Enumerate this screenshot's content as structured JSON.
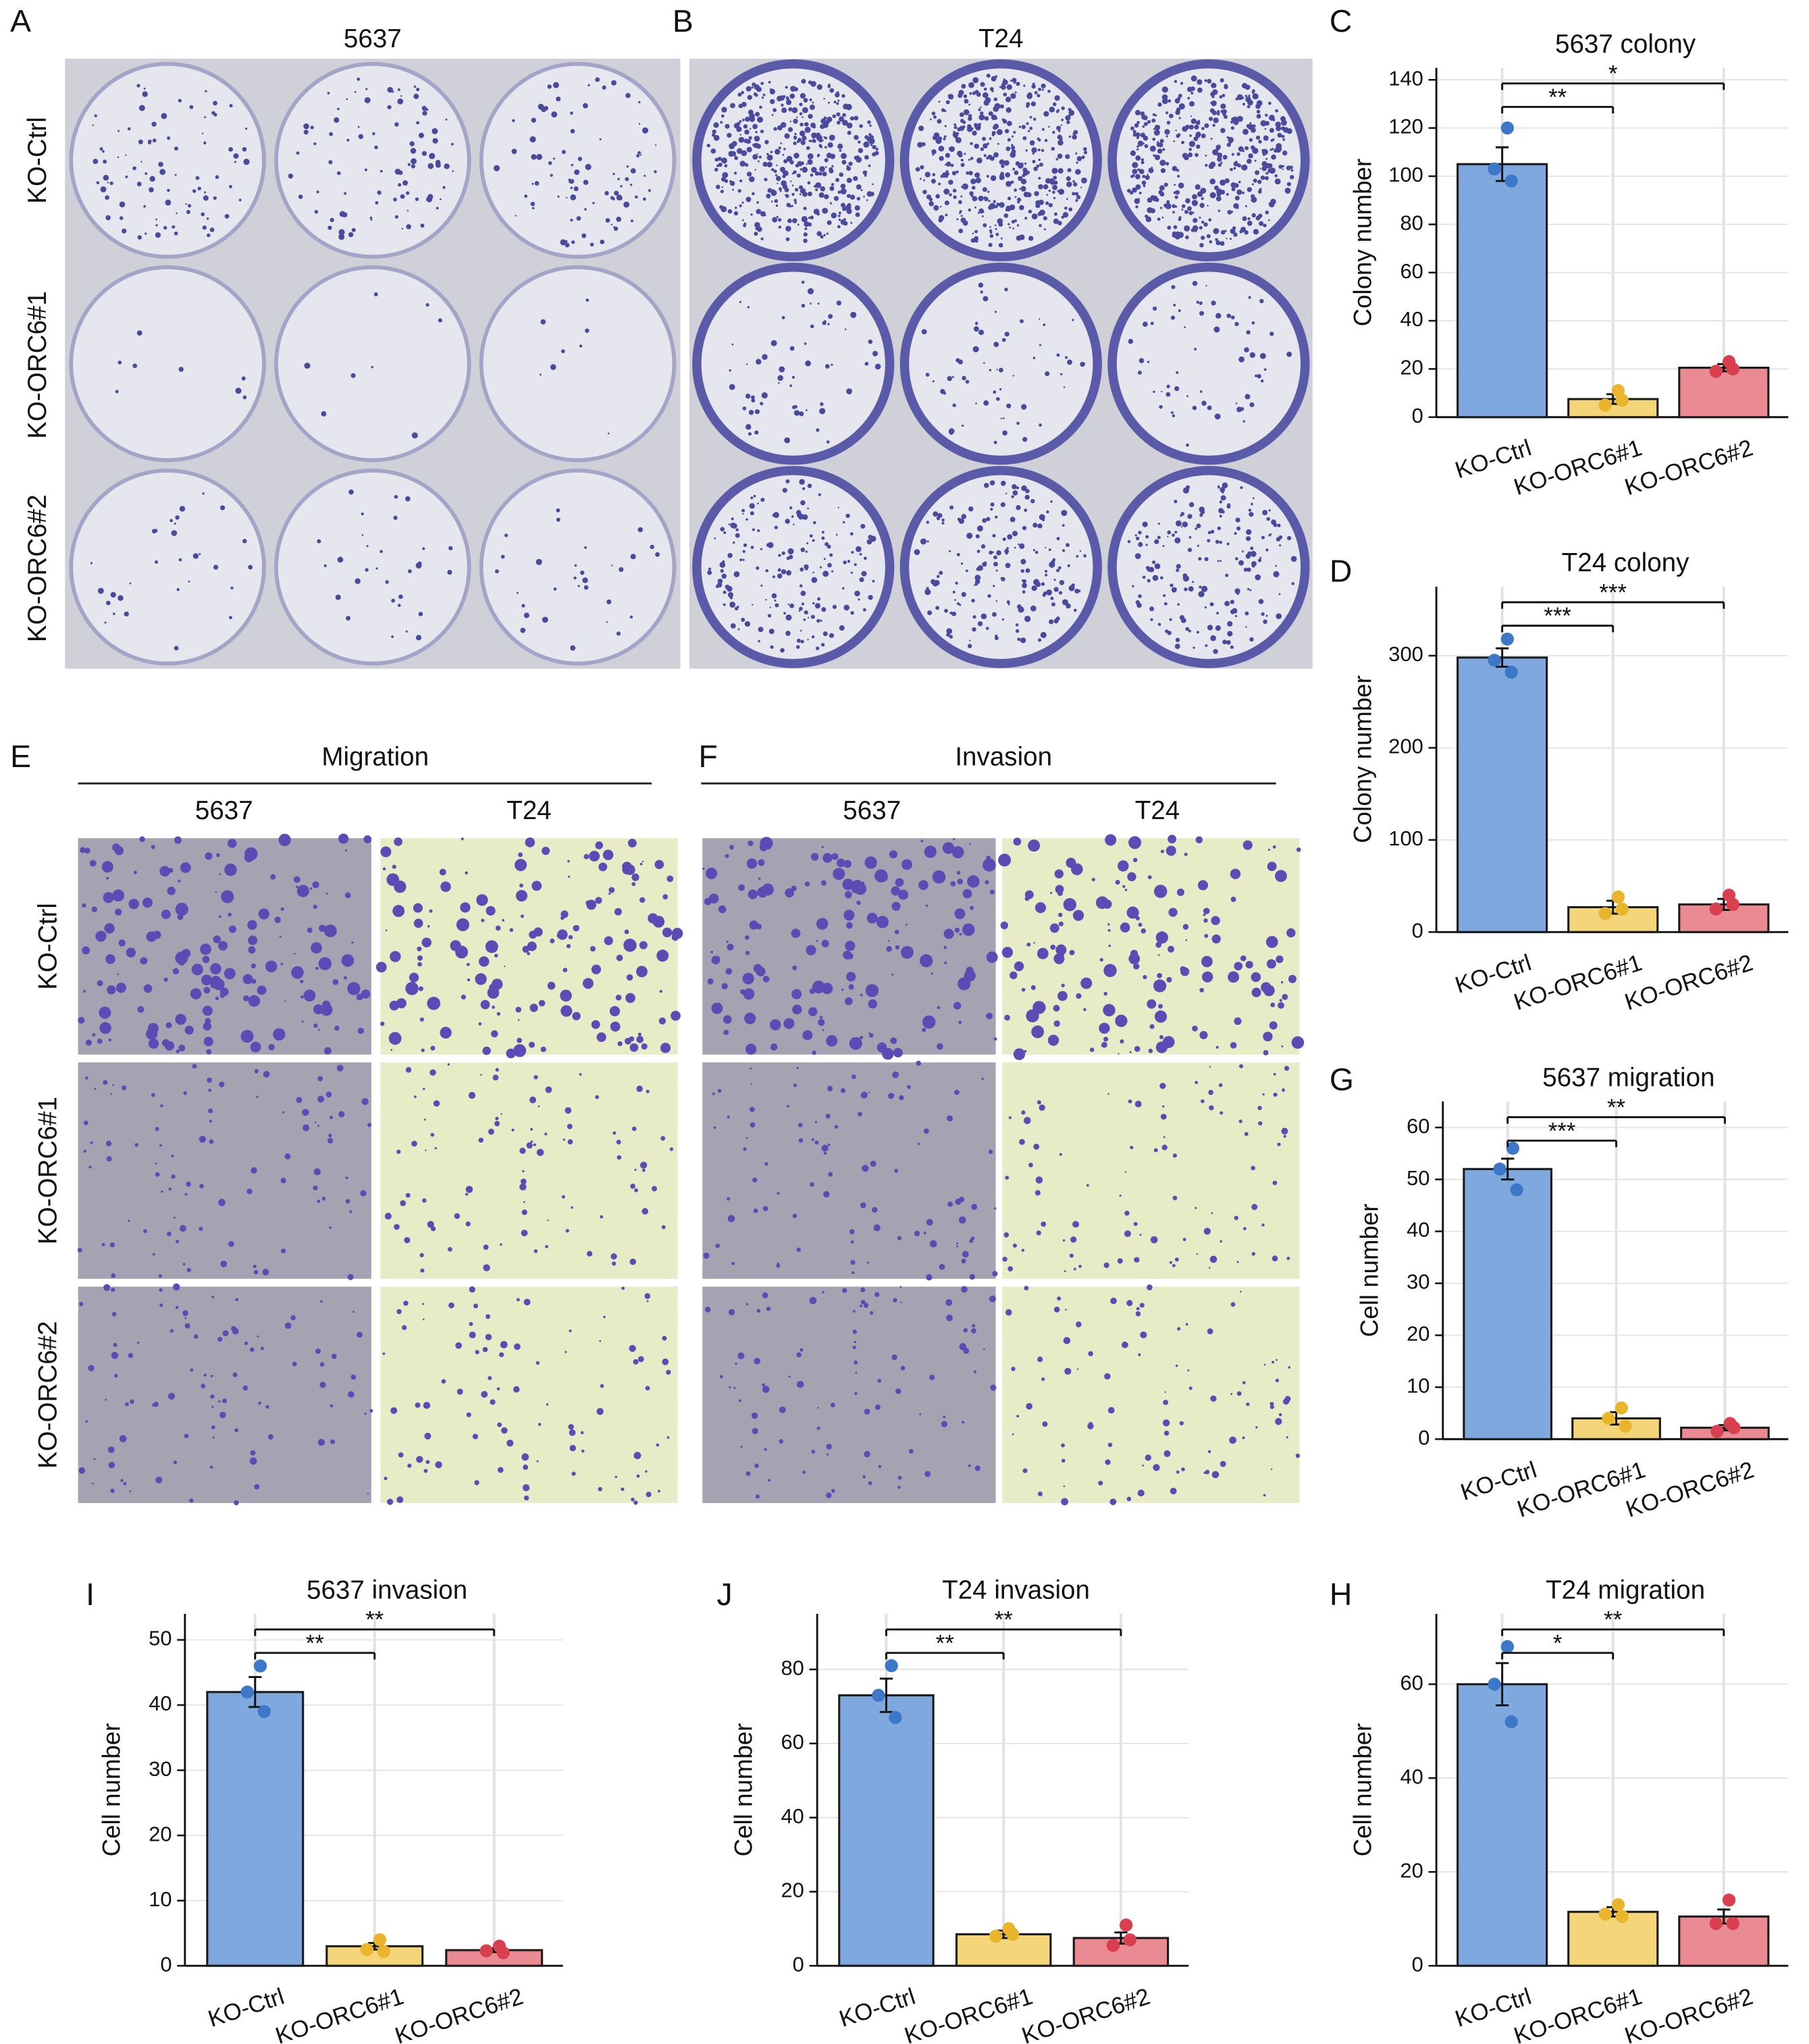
{
  "chart_data": [
    {
      "type": "bar",
      "letter": "C",
      "title": "5637 colony",
      "ylabel": "Colony number",
      "categories": [
        "KO-Ctrl",
        "KO-ORC6#1",
        "KO-ORC6#2"
      ],
      "values": [
        105,
        7.5,
        20.5
      ],
      "errors": [
        7,
        2,
        1.5
      ],
      "points": [
        [
          120,
          103,
          98
        ],
        [
          11,
          5,
          7
        ],
        [
          23,
          19,
          20
        ]
      ],
      "colors": [
        "#7ea8de",
        "#f5d57a",
        "#ea8a92"
      ],
      "point_colors": [
        "#3d78c8",
        "#e9b52c",
        "#d8404f"
      ],
      "significance": [
        "**",
        "*"
      ],
      "ylim": [
        0,
        145
      ],
      "yticks": [
        0,
        20,
        40,
        60,
        80,
        100,
        120,
        140
      ],
      "grid": true
    },
    {
      "type": "bar",
      "letter": "D",
      "title": "T24 colony",
      "ylabel": "Colony number",
      "categories": [
        "KO-Ctrl",
        "KO-ORC6#1",
        "KO-ORC6#2"
      ],
      "values": [
        298,
        27,
        30
      ],
      "errors": [
        10,
        7,
        6
      ],
      "points": [
        [
          318,
          295,
          282
        ],
        [
          38,
          20,
          25
        ],
        [
          40,
          25,
          30
        ]
      ],
      "colors": [
        "#7ea8de",
        "#f5d57a",
        "#ea8a92"
      ],
      "point_colors": [
        "#3d78c8",
        "#e9b52c",
        "#d8404f"
      ],
      "significance": [
        "***",
        "***"
      ],
      "ylim": [
        0,
        375
      ],
      "yticks": [
        0,
        100,
        200,
        300
      ],
      "grid": true
    },
    {
      "type": "bar",
      "letter": "G",
      "title": "5637 migration",
      "ylabel": "Cell number",
      "categories": [
        "KO-Ctrl",
        "KO-ORC6#1",
        "KO-ORC6#2"
      ],
      "values": [
        52,
        4,
        2.2
      ],
      "errors": [
        2,
        1.2,
        0.5
      ],
      "points": [
        [
          56,
          52,
          48
        ],
        [
          6,
          4,
          2.5
        ],
        [
          3,
          1.5,
          2.2
        ]
      ],
      "colors": [
        "#7ea8de",
        "#f5d57a",
        "#ea8a92"
      ],
      "point_colors": [
        "#3d78c8",
        "#e9b52c",
        "#d8404f"
      ],
      "significance": [
        "***",
        "**"
      ],
      "ylim": [
        0,
        65
      ],
      "yticks": [
        0,
        10,
        20,
        30,
        40,
        50,
        60
      ],
      "grid": true
    },
    {
      "type": "bar",
      "letter": "I",
      "title": "5637 invasion",
      "ylabel": "Cell number",
      "categories": [
        "KO-Ctrl",
        "KO-ORC6#1",
        "KO-ORC6#2"
      ],
      "values": [
        42,
        3,
        2.4
      ],
      "errors": [
        2.3,
        0.5,
        0.3
      ],
      "points": [
        [
          46,
          42,
          39
        ],
        [
          4,
          2.5,
          2.2
        ],
        [
          3,
          2.3,
          2
        ]
      ],
      "colors": [
        "#7ea8de",
        "#f5d57a",
        "#ea8a92"
      ],
      "point_colors": [
        "#3d78c8",
        "#e9b52c",
        "#d8404f"
      ],
      "significance": [
        "**",
        "**"
      ],
      "ylim": [
        0,
        54
      ],
      "yticks": [
        0,
        10,
        20,
        30,
        40,
        50
      ],
      "grid": true
    },
    {
      "type": "bar",
      "letter": "J",
      "title": "T24 invasion",
      "ylabel": "Cell number",
      "categories": [
        "KO-Ctrl",
        "KO-ORC6#1",
        "KO-ORC6#2"
      ],
      "values": [
        73,
        8.5,
        7.5
      ],
      "errors": [
        4.5,
        1,
        1.5
      ],
      "points": [
        [
          81,
          73,
          67
        ],
        [
          10,
          8,
          8.5
        ],
        [
          11,
          5.5,
          7
        ]
      ],
      "colors": [
        "#7ea8de",
        "#f5d57a",
        "#ea8a92"
      ],
      "point_colors": [
        "#3d78c8",
        "#e9b52c",
        "#d8404f"
      ],
      "significance": [
        "**",
        "**"
      ],
      "ylim": [
        0,
        95
      ],
      "yticks": [
        0,
        20,
        40,
        60,
        80
      ],
      "grid": true
    },
    {
      "type": "bar",
      "letter": "H",
      "title": "T24 migration",
      "ylabel": "Cell number",
      "categories": [
        "KO-Ctrl",
        "KO-ORC6#1",
        "KO-ORC6#2"
      ],
      "values": [
        60,
        11.5,
        10.5
      ],
      "errors": [
        4.5,
        1,
        1.5
      ],
      "points": [
        [
          68,
          60,
          52
        ],
        [
          13,
          11,
          10.5
        ],
        [
          14,
          9,
          9
        ]
      ],
      "colors": [
        "#7ea8de",
        "#f5d57a",
        "#ea8a92"
      ],
      "point_colors": [
        "#3d78c8",
        "#e9b52c",
        "#d8404f"
      ],
      "significance": [
        "*",
        "**"
      ],
      "ylim": [
        0,
        75
      ],
      "yticks": [
        0,
        20,
        40,
        60
      ],
      "grid": true
    }
  ],
  "photo_panels": [
    {
      "letter": "A",
      "title": "5637",
      "rows": [
        "KO-Ctrl",
        "KO-ORC6#1",
        "KO-ORC6#2"
      ]
    },
    {
      "letter": "B",
      "title": "T24"
    },
    {
      "letter": "E",
      "title": "Migration",
      "columns": [
        "5637",
        "T24"
      ],
      "rows": [
        "KO-Ctrl",
        "KO-ORC6#1",
        "KO-ORC6#2"
      ]
    },
    {
      "letter": "F",
      "title": "Invasion",
      "columns": [
        "5637",
        "T24"
      ]
    }
  ]
}
